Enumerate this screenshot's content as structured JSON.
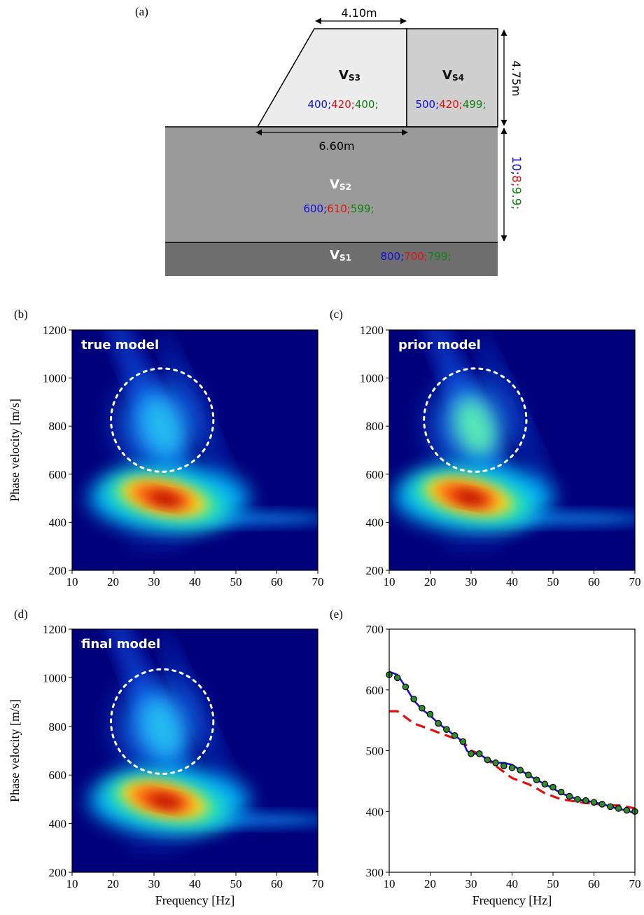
{
  "panel_labels": {
    "a": "(a)",
    "b": "(b)",
    "c": "(c)",
    "d": "(d)",
    "e": "(e)"
  },
  "model": {
    "top_width": "4.10m",
    "base_width": "6.60m",
    "embankment_height": "4.75m",
    "layer2_thickness": {
      "true": "10;",
      "prior": "8;",
      "final": "9.9;"
    },
    "layers": {
      "vs3": {
        "symbol": "V",
        "subscript": "S3",
        "true": "400;",
        "prior": "420;",
        "final": "400;"
      },
      "vs4": {
        "symbol": "V",
        "subscript": "S4",
        "true": "500;",
        "prior": "420;",
        "final": "499;"
      },
      "vs2": {
        "symbol": "V",
        "subscript": "S2",
        "true": "600;",
        "prior": "610;",
        "final": "599;"
      },
      "vs1": {
        "symbol": "V",
        "subscript": "S1",
        "true": "800;",
        "prior": "700;",
        "final": "799;"
      }
    },
    "colors": {
      "true": "#1010e0",
      "prior": "#e01010",
      "final": "#108010",
      "embankment_left": "#ececec",
      "embankment_right": "#cfcfcf",
      "layer2": "#9a9a9a",
      "layer1": "#6e6e6e"
    }
  },
  "chart_data": [
    {
      "panel": "b",
      "type": "heatmap",
      "annotation": "true model",
      "xlabel": "",
      "ylabel": "Phase velocity [m/s]",
      "xlim": [
        10,
        70
      ],
      "ylim": [
        200,
        1200
      ],
      "xticks": [
        10,
        20,
        30,
        40,
        50,
        60,
        70
      ],
      "yticks": [
        200,
        400,
        600,
        800,
        1000,
        1200
      ],
      "colormap": "jet",
      "dashed_circle": {
        "center": [
          32,
          825
        ],
        "radius_freq": 12.5,
        "radius_vel": 215
      },
      "peak": {
        "frequency": 33,
        "velocity": 495
      }
    },
    {
      "panel": "c",
      "type": "heatmap",
      "annotation": "prior model",
      "xlabel": "",
      "ylabel": "",
      "xlim": [
        10,
        70
      ],
      "ylim": [
        200,
        1200
      ],
      "xticks": [
        10,
        20,
        30,
        40,
        50,
        60,
        70
      ],
      "yticks": [
        200,
        400,
        600,
        800,
        1000,
        1200
      ],
      "colormap": "jet",
      "dashed_circle": {
        "center": [
          31,
          825
        ],
        "radius_freq": 12.5,
        "radius_vel": 215
      },
      "peak": {
        "frequency": 30,
        "velocity": 500
      }
    },
    {
      "panel": "d",
      "type": "heatmap",
      "annotation": "final model",
      "xlabel": "Frequency [Hz]",
      "ylabel": "Phase velocity [m/s]",
      "xlim": [
        10,
        70
      ],
      "ylim": [
        200,
        1200
      ],
      "xticks": [
        10,
        20,
        30,
        40,
        50,
        60,
        70
      ],
      "yticks": [
        200,
        400,
        600,
        800,
        1000,
        1200
      ],
      "colormap": "jet",
      "dashed_circle": {
        "center": [
          32,
          820
        ],
        "radius_freq": 12.5,
        "radius_vel": 215
      },
      "peak": {
        "frequency": 33,
        "velocity": 490
      }
    },
    {
      "panel": "e",
      "type": "line",
      "xlabel": "Frequency [Hz]",
      "ylabel": "",
      "xlim": [
        10,
        70
      ],
      "ylim": [
        300,
        700
      ],
      "xticks": [
        10,
        20,
        30,
        40,
        50,
        60,
        70
      ],
      "yticks": [
        300,
        400,
        500,
        600,
        700
      ],
      "series": [
        {
          "style": "solid",
          "color": "#1010e0",
          "x": [
            10,
            12,
            14,
            16,
            18,
            20,
            22,
            24,
            26,
            28,
            29,
            30,
            32,
            34,
            36,
            38,
            40,
            42,
            44,
            46,
            48,
            50,
            52,
            54,
            56,
            58,
            60,
            62,
            64,
            66,
            68,
            70
          ],
          "y": [
            630,
            625,
            605,
            583,
            568,
            558,
            545,
            535,
            525,
            515,
            500,
            495,
            495,
            485,
            480,
            480,
            477,
            468,
            460,
            452,
            445,
            438,
            430,
            425,
            420,
            418,
            415,
            412,
            408,
            404,
            402,
            397
          ]
        },
        {
          "style": "dashed",
          "color": "#e01010",
          "x": [
            10,
            12,
            14,
            16,
            18,
            20,
            22,
            24,
            26,
            28,
            30,
            32,
            34,
            36,
            38,
            40,
            42,
            44,
            46,
            48,
            50,
            52,
            54,
            56,
            58,
            60,
            62,
            64,
            66,
            68,
            70
          ],
          "y": [
            565,
            565,
            555,
            545,
            540,
            535,
            530,
            525,
            520,
            515,
            500,
            495,
            485,
            475,
            465,
            455,
            450,
            445,
            438,
            430,
            425,
            420,
            418,
            416,
            414,
            413,
            411,
            410,
            410,
            408,
            405
          ]
        },
        {
          "style": "markers",
          "color": "#2e8b2e",
          "x": [
            10,
            12,
            14,
            16,
            18,
            20,
            22,
            24,
            26,
            28,
            30,
            32,
            34,
            36,
            38,
            40,
            42,
            44,
            46,
            48,
            50,
            52,
            54,
            56,
            58,
            60,
            62,
            64,
            66,
            68,
            70
          ],
          "y": [
            625,
            620,
            605,
            585,
            570,
            560,
            545,
            535,
            525,
            515,
            495,
            495,
            485,
            480,
            475,
            472,
            468,
            460,
            452,
            445,
            440,
            432,
            425,
            420,
            418,
            415,
            412,
            408,
            405,
            402,
            400
          ]
        }
      ]
    }
  ]
}
